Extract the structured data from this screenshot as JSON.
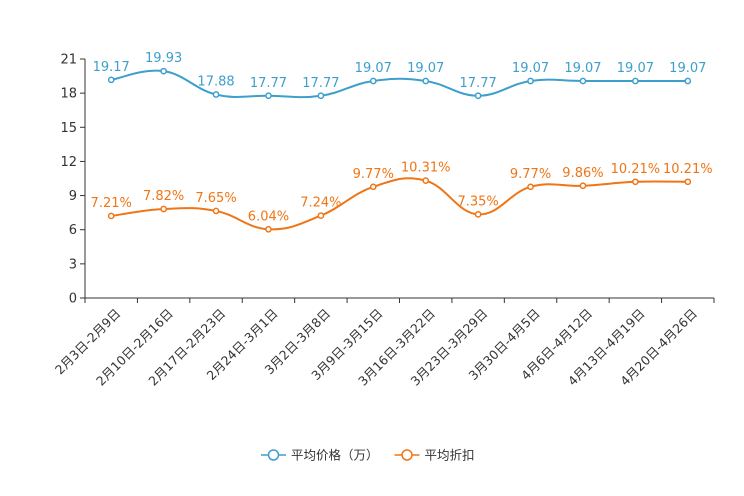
{
  "chart_data": {
    "type": "line",
    "title": "",
    "xlabel": "",
    "ylabel": "",
    "ylim": [
      0,
      21
    ],
    "yticks": [
      0,
      3,
      6,
      9,
      12,
      15,
      18,
      21
    ],
    "grid": false,
    "legend_position": "bottom",
    "categories": [
      "2月3日-2月9日",
      "2月10日-2月16日",
      "2月17日-2月23日",
      "2月24日-3月1日",
      "3月2日-3月8日",
      "3月9日-3月15日",
      "3月16日-3月22日",
      "3月23日-3月29日",
      "3月30日-4月5日",
      "4月6日-4月12日",
      "4月13日-4月19日",
      "4月20日-4月26日"
    ],
    "series": [
      {
        "name": "平均价格（万）",
        "color": "#3d9fcc",
        "values": [
          19.17,
          19.93,
          17.88,
          17.77,
          17.77,
          19.07,
          19.07,
          17.77,
          19.07,
          19.07,
          19.07,
          19.07
        ],
        "labels": [
          "19.17",
          "19.93",
          "17.88",
          "17.77",
          "17.77",
          "19.07",
          "19.07",
          "17.77",
          "19.07",
          "19.07",
          "19.07",
          "19.07"
        ]
      },
      {
        "name": "平均折扣",
        "color": "#f07515",
        "values": [
          7.21,
          7.82,
          7.65,
          6.04,
          7.24,
          9.77,
          10.31,
          7.35,
          9.77,
          9.86,
          10.21,
          10.21
        ],
        "labels": [
          "7.21%",
          "7.82%",
          "7.65%",
          "6.04%",
          "7.24%",
          "9.77%",
          "10.31%",
          "7.35%",
          "9.77%",
          "9.86%",
          "10.21%",
          "10.21%"
        ]
      }
    ]
  }
}
